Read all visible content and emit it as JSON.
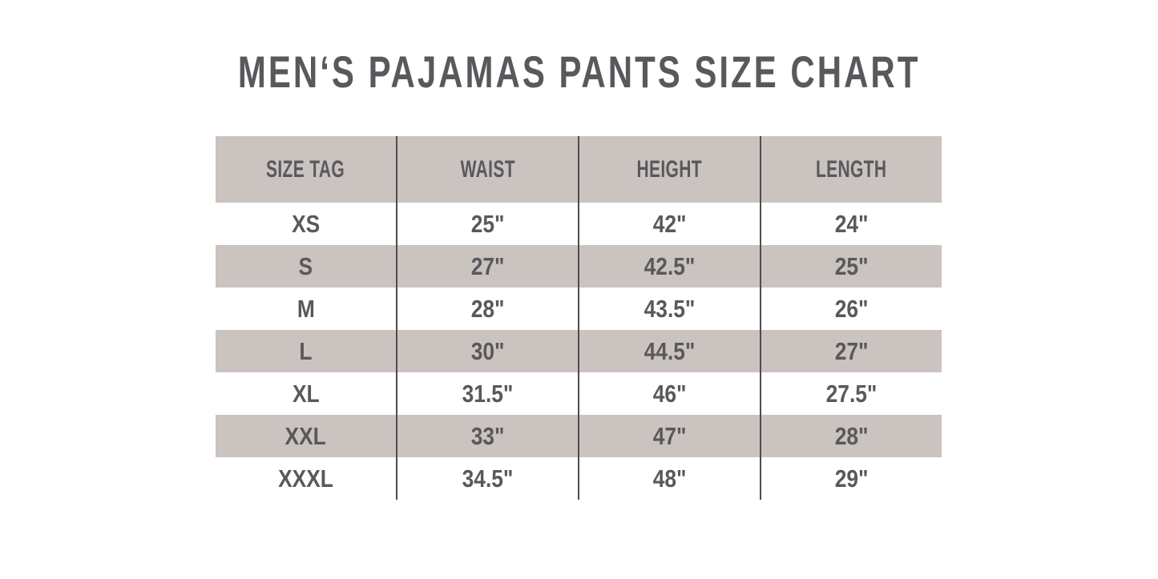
{
  "chart_data": {
    "type": "table",
    "title": "MEN‘S PAJAMAS PANTS SIZE CHART",
    "columns": [
      "SIZE TAG",
      "WAIST",
      "HEIGHT",
      "LENGTH"
    ],
    "rows": [
      [
        "XS",
        "25\"",
        "42\"",
        "24\""
      ],
      [
        "S",
        "27\"",
        "42.5\"",
        "25\""
      ],
      [
        "M",
        "28\"",
        "43.5\"",
        "26\""
      ],
      [
        "L",
        "30\"",
        "44.5\"",
        "27\""
      ],
      [
        "XL",
        "31.5\"",
        "46\"",
        "27.5\""
      ],
      [
        "XXL",
        "33\"",
        "47\"",
        "28\""
      ],
      [
        "XXXL",
        "34.5\"",
        "48\"",
        "29\""
      ]
    ],
    "layout": {
      "grid": "internal-vertical-dividers-only",
      "row_striping": "header-taupe, data rows alternate white/taupe starting white"
    }
  },
  "colors": {
    "background": "#ffffff",
    "header_bg": "#cbc3c0",
    "row_alt_bg": "#cbc3c0",
    "text": "#58595c",
    "divider": "#4d4d4d"
  }
}
